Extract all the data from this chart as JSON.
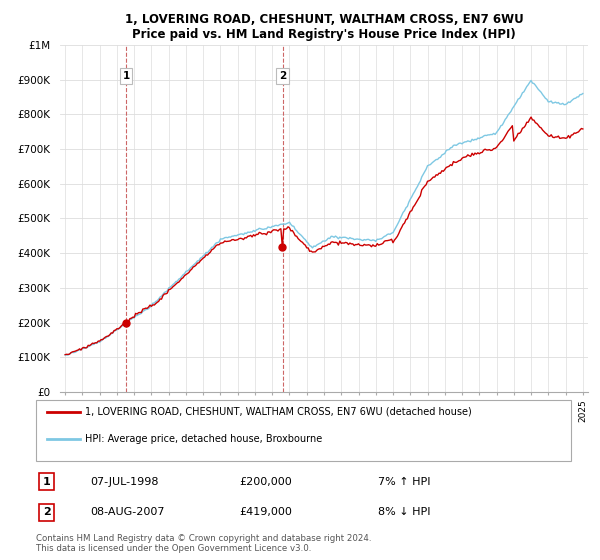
{
  "title1": "1, LOVERING ROAD, CHESHUNT, WALTHAM CROSS, EN7 6WU",
  "title2": "Price paid vs. HM Land Registry's House Price Index (HPI)",
  "ylabel_ticks": [
    "£0",
    "£100K",
    "£200K",
    "£300K",
    "£400K",
    "£500K",
    "£600K",
    "£700K",
    "£800K",
    "£900K",
    "£1M"
  ],
  "ytick_values": [
    0,
    100000,
    200000,
    300000,
    400000,
    500000,
    600000,
    700000,
    800000,
    900000,
    1000000
  ],
  "ylim": [
    0,
    1000000
  ],
  "xlim_left": 1994.7,
  "xlim_right": 2025.3,
  "hpi_color": "#7ec8e3",
  "price_color": "#cc0000",
  "sale1_x": 1998.53,
  "sale1_y": 200000,
  "sale2_x": 2007.6,
  "sale2_y": 419000,
  "legend_price_label": "1, LOVERING ROAD, CHESHUNT, WALTHAM CROSS, EN7 6WU (detached house)",
  "legend_hpi_label": "HPI: Average price, detached house, Broxbourne",
  "ann1_date": "07-JUL-1998",
  "ann1_price": "£200,000",
  "ann1_hpi": "7% ↑ HPI",
  "ann2_date": "08-AUG-2007",
  "ann2_price": "£419,000",
  "ann2_hpi": "8% ↓ HPI",
  "footer": "Contains HM Land Registry data © Crown copyright and database right 2024.\nThis data is licensed under the Open Government Licence v3.0.",
  "bg_color": "#ffffff",
  "grid_color": "#dddddd"
}
